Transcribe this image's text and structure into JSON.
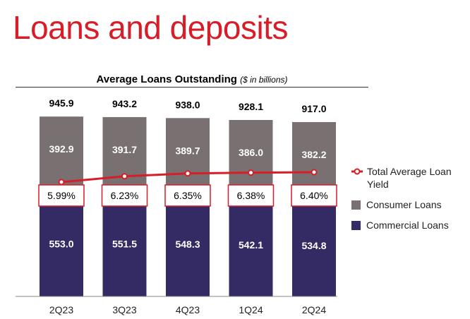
{
  "page": {
    "title": "Loans and deposits"
  },
  "chart_data": {
    "type": "bar",
    "stacked": true,
    "title": "Average Loans Outstanding",
    "subtitle": "($ in billions)",
    "categories": [
      "2Q23",
      "3Q23",
      "4Q23",
      "1Q24",
      "2Q24"
    ],
    "totals": [
      "945.9",
      "943.2",
      "938.0",
      "928.1",
      "917.0"
    ],
    "series": [
      {
        "name": "Commercial Loans",
        "values": [
          553.0,
          551.5,
          548.3,
          542.1,
          534.8
        ],
        "labels": [
          "553.0",
          "551.5",
          "548.3",
          "542.1",
          "534.8"
        ],
        "color": "#352b64"
      },
      {
        "name": "Consumer Loans",
        "values": [
          392.9,
          391.7,
          389.7,
          386.0,
          382.2
        ],
        "labels": [
          "392.9",
          "391.7",
          "389.7",
          "386.0",
          "382.2"
        ],
        "color": "#787071"
      }
    ],
    "line_series": {
      "name": "Total Average Loan Yield",
      "values": [
        5.99,
        6.23,
        6.35,
        6.38,
        6.4
      ],
      "labels": [
        "5.99%",
        "6.23%",
        "6.35%",
        "6.38%",
        "6.40%"
      ],
      "color": "#d71e28",
      "ylim": [
        5.9,
        6.5
      ]
    },
    "ylim": [
      0,
      1000
    ],
    "legend_position": "right",
    "grid": false
  },
  "legend": {
    "yield_label": "Total Average Loan Yield",
    "consumer_label": "Consumer Loans",
    "commercial_label": "Commercial Loans"
  }
}
